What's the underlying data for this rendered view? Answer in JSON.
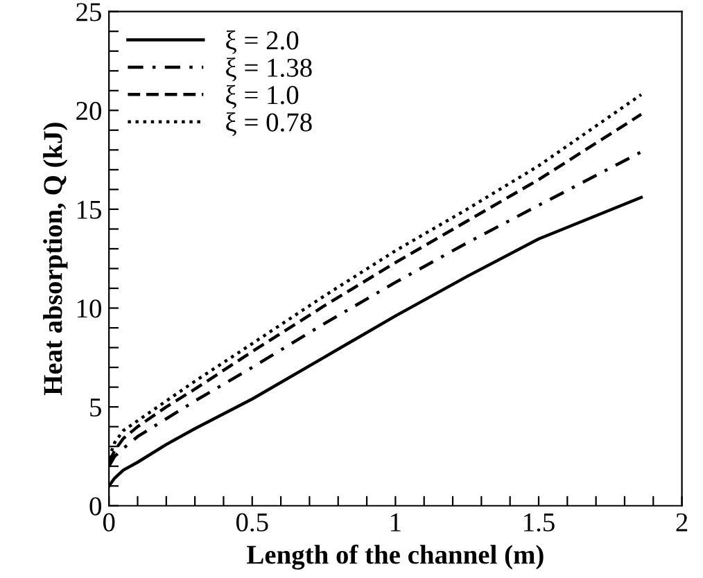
{
  "chart_data": {
    "type": "line",
    "xlabel": "Length of the channel (m)",
    "ylabel": "Heat absorption, Q (kJ)",
    "xlim": [
      0,
      2
    ],
    "ylim": [
      0,
      25
    ],
    "xticks": [
      0,
      {
        "value": 0.1,
        "label": null
      },
      {
        "value": 0.2,
        "label": null
      },
      {
        "value": 0.3,
        "label": null
      },
      {
        "value": 0.4,
        "label": null
      },
      0.5,
      {
        "value": 0.6,
        "label": null
      },
      {
        "value": 0.7,
        "label": null
      },
      {
        "value": 0.8,
        "label": null
      },
      {
        "value": 0.9,
        "label": null
      },
      1,
      {
        "value": 1.1,
        "label": null
      },
      {
        "value": 1.2,
        "label": null
      },
      {
        "value": 1.3,
        "label": null
      },
      {
        "value": 1.4,
        "label": null
      },
      1.5,
      {
        "value": 1.6,
        "label": null
      },
      {
        "value": 1.7,
        "label": null
      },
      {
        "value": 1.8,
        "label": null
      },
      {
        "value": 1.9,
        "label": null
      },
      2
    ],
    "yticks": [
      0,
      {
        "value": 1,
        "label": null
      },
      {
        "value": 2,
        "label": null
      },
      {
        "value": 3,
        "label": null
      },
      {
        "value": 4,
        "label": null
      },
      5,
      {
        "value": 6,
        "label": null
      },
      {
        "value": 7,
        "label": null
      },
      {
        "value": 8,
        "label": null
      },
      {
        "value": 9,
        "label": null
      },
      10,
      {
        "value": 11,
        "label": null
      },
      {
        "value": 12,
        "label": null
      },
      {
        "value": 13,
        "label": null
      },
      {
        "value": 14,
        "label": null
      },
      15,
      {
        "value": 16,
        "label": null
      },
      {
        "value": 17,
        "label": null
      },
      {
        "value": 18,
        "label": null
      },
      {
        "value": 19,
        "label": null
      },
      20,
      {
        "value": 21,
        "label": null
      },
      {
        "value": 22,
        "label": null
      },
      {
        "value": 23,
        "label": null
      },
      {
        "value": 24,
        "label": null
      },
      25
    ],
    "x": [
      0,
      0.02,
      0.05,
      0.1,
      0.2,
      0.3,
      0.5,
      0.75,
      1,
      1.25,
      1.5,
      1.858
    ],
    "grid": false,
    "legend": "top left",
    "marker": "none",
    "series": [
      {
        "name": "ξ = 2.0",
        "color": "#000000",
        "line_style": "solid",
        "values": [
          1.0,
          1.4,
          1.8,
          2.2,
          3.1,
          3.9,
          5.4,
          7.5,
          9.6,
          11.6,
          13.5,
          15.6
        ]
      },
      {
        "name": "ξ = 1.38",
        "color": "#000000",
        "line_style": "dashdot",
        "values": [
          2.0,
          2.5,
          2.9,
          3.5,
          4.4,
          5.3,
          7.0,
          9.2,
          11.3,
          13.3,
          15.2,
          17.9
        ]
      },
      {
        "name": "ξ = 1.0",
        "color": "#000000",
        "line_style": "dashed",
        "values": [
          2.2,
          2.8,
          3.4,
          4.0,
          5.0,
          5.9,
          7.8,
          10.1,
          12.3,
          14.4,
          16.5,
          19.8
        ]
      },
      {
        "name": "ξ = 0.78",
        "color": "#000000",
        "line_style": "dotted",
        "values": [
          2.4,
          3.2,
          3.8,
          4.3,
          5.3,
          6.3,
          8.2,
          10.6,
          12.9,
          15.0,
          17.2,
          20.8
        ]
      }
    ]
  }
}
